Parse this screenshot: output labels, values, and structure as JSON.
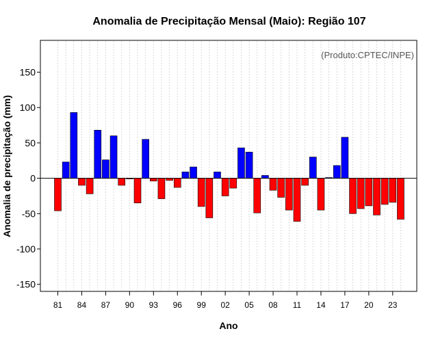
{
  "chart_data": {
    "type": "bar",
    "title": "Anomalia de Precipitação Mensal (Maio): Região 107",
    "xlabel": "Ano",
    "ylabel": "Anomalia de precipitação (mm)",
    "source_note": "(Produto:CPTEC/INPE)",
    "ylim": [
      -160,
      195
    ],
    "yticks": [
      "-150",
      "-100",
      "-50",
      "0",
      "50",
      "100",
      "150"
    ],
    "ytick_values": [
      -150,
      -100,
      -50,
      0,
      50,
      100,
      150
    ],
    "xtick_labels": [
      "81",
      "84",
      "87",
      "90",
      "93",
      "96",
      "99",
      "02",
      "05",
      "08",
      "11",
      "14",
      "17",
      "20",
      "23"
    ],
    "grid": true,
    "positive_color": "#0000ff",
    "negative_color": "#ff0000",
    "categories": [
      "1981",
      "1982",
      "1983",
      "1984",
      "1985",
      "1986",
      "1987",
      "1988",
      "1989",
      "1990",
      "1991",
      "1992",
      "1993",
      "1994",
      "1995",
      "1996",
      "1997",
      "1998",
      "1999",
      "2000",
      "2001",
      "2002",
      "2003",
      "2004",
      "2005",
      "2006",
      "2007",
      "2008",
      "2009",
      "2010",
      "2011",
      "2012",
      "2013",
      "2014",
      "2015",
      "2016",
      "2017",
      "2018",
      "2019",
      "2020",
      "2021",
      "2022",
      "2023",
      "2024"
    ],
    "values": [
      -46,
      23,
      93,
      -10,
      -22,
      68,
      26,
      60,
      -10,
      -1,
      -35,
      55,
      -4,
      -29,
      -3,
      -13,
      9,
      16,
      -40,
      -56,
      9,
      -25,
      -14,
      43,
      37,
      -49,
      4,
      -17,
      -27,
      -45,
      -61,
      -10,
      30,
      -45,
      1,
      18,
      58,
      -50,
      -43,
      -39,
      -52,
      -37,
      -34,
      -58
    ]
  }
}
